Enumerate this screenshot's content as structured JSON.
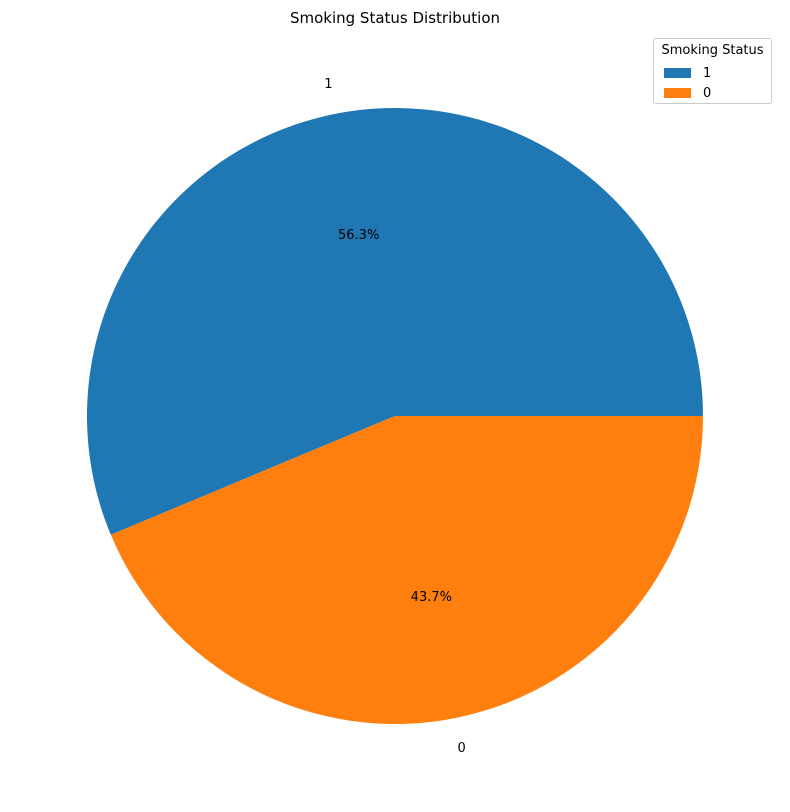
{
  "chart_data": {
    "type": "pie",
    "title": "Smoking Status Distribution",
    "slices": [
      {
        "label": "1",
        "percent": 56.3,
        "percent_label": "56.3%",
        "color": "#1f77b4"
      },
      {
        "label": "0",
        "percent": 43.7,
        "percent_label": "43.7%",
        "color": "#ff7f0e"
      }
    ],
    "start_angle_deg": 0,
    "direction": "counterclockwise",
    "legend": {
      "title": "Smoking Status",
      "placement": "top-right",
      "entries": [
        "1",
        "0"
      ]
    }
  }
}
